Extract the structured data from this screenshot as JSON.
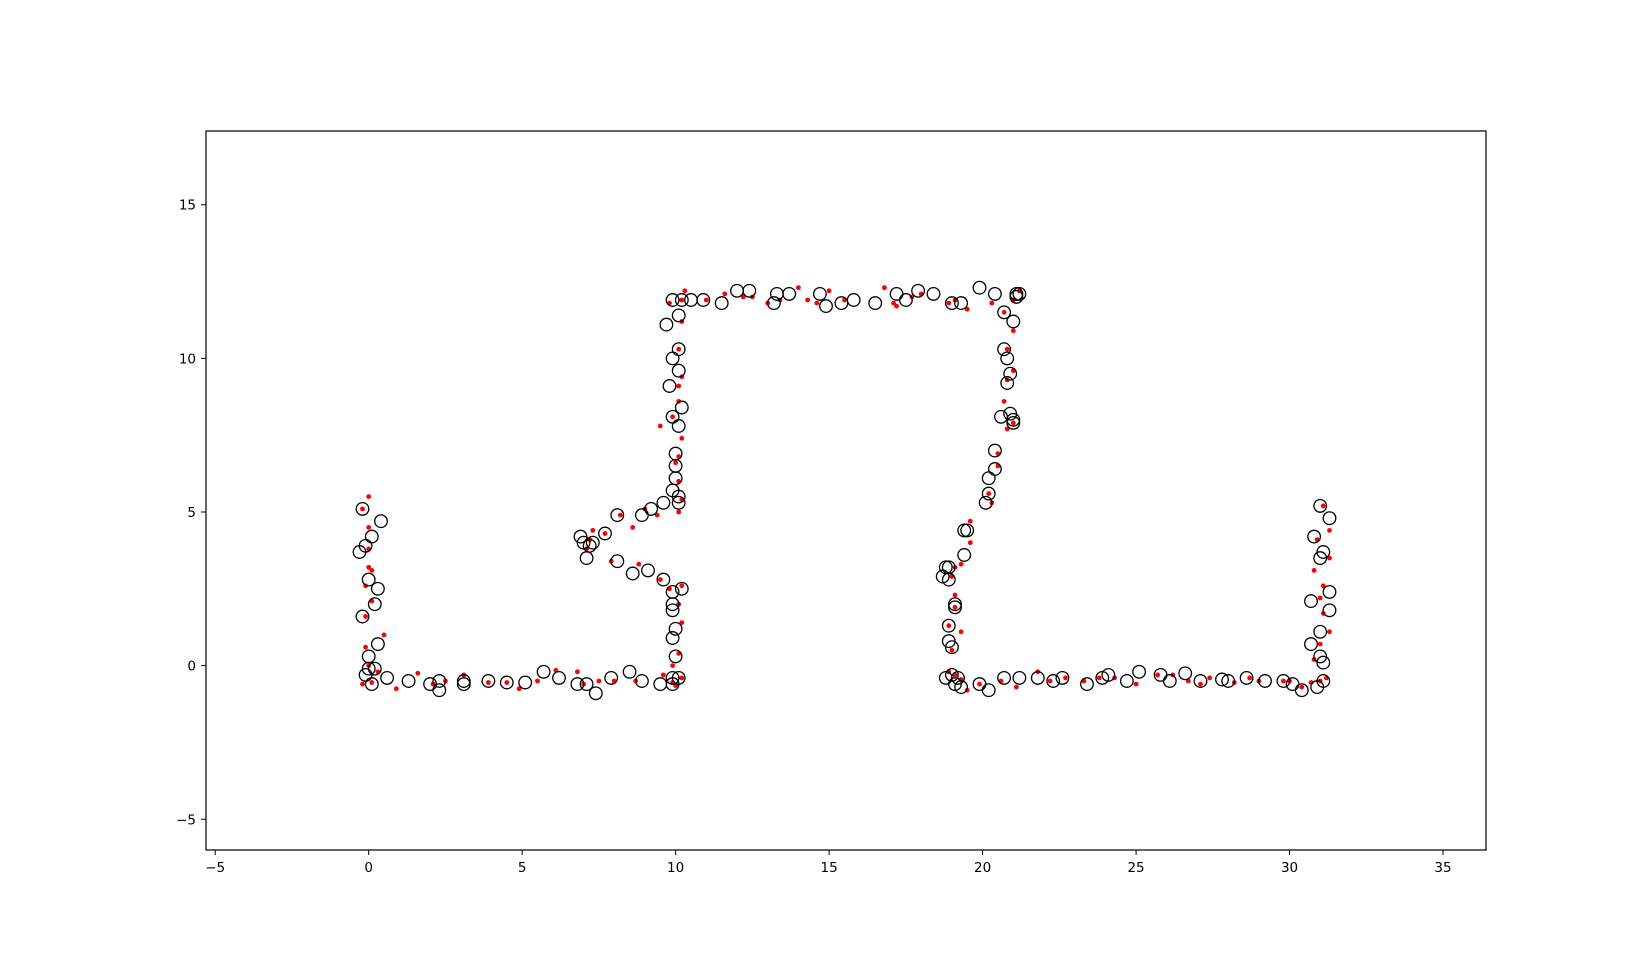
{
  "chart_data": {
    "type": "scatter",
    "title": "",
    "xlabel": "",
    "ylabel": "",
    "xlim": [
      -5.3,
      36.4
    ],
    "ylim": [
      -6.0,
      17.4
    ],
    "xticks": [
      -5,
      0,
      5,
      10,
      15,
      20,
      25,
      30,
      35
    ],
    "xtick_labels": [
      "−5",
      "0",
      "5",
      "10",
      "15",
      "20",
      "25",
      "30",
      "35"
    ],
    "yticks": [
      -5,
      0,
      5,
      10,
      15
    ],
    "ytick_labels": [
      "−5",
      "0",
      "5",
      "10",
      "15"
    ],
    "grid": false,
    "legend": "none",
    "series": [
      {
        "marker": "open-circle",
        "color": "#000000",
        "points": [
          [
            -0.2,
            5.1
          ],
          [
            0.4,
            4.7
          ],
          [
            0.1,
            4.2
          ],
          [
            -0.1,
            3.9
          ],
          [
            -0.3,
            3.7
          ],
          [
            0.0,
            2.8
          ],
          [
            0.3,
            2.5
          ],
          [
            0.2,
            2.0
          ],
          [
            -0.2,
            1.6
          ],
          [
            0.3,
            0.7
          ],
          [
            0.0,
            0.3
          ],
          [
            0.0,
            -0.1
          ],
          [
            0.2,
            -0.1
          ],
          [
            -0.1,
            -0.3
          ],
          [
            0.6,
            -0.4
          ],
          [
            0.1,
            -0.6
          ],
          [
            1.3,
            -0.5
          ],
          [
            2.0,
            -0.6
          ],
          [
            2.3,
            -0.5
          ],
          [
            2.3,
            -0.8
          ],
          [
            3.1,
            -0.5
          ],
          [
            3.1,
            -0.6
          ],
          [
            3.9,
            -0.5
          ],
          [
            4.5,
            -0.55
          ],
          [
            5.1,
            -0.55
          ],
          [
            5.7,
            -0.2
          ],
          [
            6.2,
            -0.4
          ],
          [
            6.8,
            -0.6
          ],
          [
            7.1,
            -0.6
          ],
          [
            7.4,
            -0.9
          ],
          [
            7.9,
            -0.4
          ],
          [
            8.5,
            -0.2
          ],
          [
            8.9,
            -0.5
          ],
          [
            9.5,
            -0.6
          ],
          [
            9.9,
            -0.6
          ],
          [
            10.1,
            -0.4
          ],
          [
            9.9,
            -0.4
          ],
          [
            10.0,
            0.3
          ],
          [
            9.9,
            0.9
          ],
          [
            10.0,
            1.2
          ],
          [
            9.9,
            1.8
          ],
          [
            9.9,
            2.0
          ],
          [
            10.2,
            2.5
          ],
          [
            9.9,
            2.4
          ],
          [
            9.6,
            2.8
          ],
          [
            9.1,
            3.1
          ],
          [
            8.6,
            3.0
          ],
          [
            8.1,
            3.4
          ],
          [
            7.3,
            4.0
          ],
          [
            7.7,
            4.3
          ],
          [
            7.1,
            3.5
          ],
          [
            6.9,
            4.2
          ],
          [
            7.0,
            4.0
          ],
          [
            7.2,
            3.9
          ],
          [
            8.1,
            4.9
          ],
          [
            8.9,
            4.9
          ],
          [
            9.2,
            5.1
          ],
          [
            9.6,
            5.3
          ],
          [
            10.1,
            5.3
          ],
          [
            10.1,
            5.5
          ],
          [
            9.9,
            5.7
          ],
          [
            10.0,
            6.1
          ],
          [
            10.0,
            6.5
          ],
          [
            10.0,
            6.9
          ],
          [
            10.1,
            7.8
          ],
          [
            9.9,
            8.1
          ],
          [
            10.2,
            8.4
          ],
          [
            10.1,
            9.6
          ],
          [
            9.8,
            9.1
          ],
          [
            9.9,
            10.0
          ],
          [
            10.1,
            10.3
          ],
          [
            9.7,
            11.1
          ],
          [
            10.1,
            11.4
          ],
          [
            9.9,
            11.9
          ],
          [
            10.2,
            11.9
          ],
          [
            10.5,
            11.9
          ],
          [
            10.9,
            11.9
          ],
          [
            11.5,
            11.8
          ],
          [
            12.0,
            12.2
          ],
          [
            12.4,
            12.2
          ],
          [
            13.2,
            11.8
          ],
          [
            13.3,
            12.1
          ],
          [
            13.7,
            12.1
          ],
          [
            14.7,
            12.1
          ],
          [
            14.9,
            11.7
          ],
          [
            15.4,
            11.8
          ],
          [
            15.8,
            11.9
          ],
          [
            16.5,
            11.8
          ],
          [
            17.2,
            12.1
          ],
          [
            17.5,
            11.9
          ],
          [
            17.9,
            12.2
          ],
          [
            18.4,
            12.1
          ],
          [
            19.0,
            11.8
          ],
          [
            19.3,
            11.8
          ],
          [
            19.9,
            12.3
          ],
          [
            20.4,
            12.1
          ],
          [
            21.1,
            12.1
          ],
          [
            21.1,
            12.0
          ],
          [
            21.2,
            12.1
          ],
          [
            20.7,
            11.5
          ],
          [
            21.0,
            11.2
          ],
          [
            20.7,
            10.3
          ],
          [
            20.8,
            10.0
          ],
          [
            20.9,
            9.5
          ],
          [
            20.8,
            9.2
          ],
          [
            20.6,
            8.1
          ],
          [
            20.9,
            8.2
          ],
          [
            21.0,
            8.0
          ],
          [
            21.0,
            7.9
          ],
          [
            20.4,
            7.0
          ],
          [
            20.4,
            6.4
          ],
          [
            20.2,
            6.1
          ],
          [
            20.2,
            5.6
          ],
          [
            20.1,
            5.3
          ],
          [
            19.4,
            4.4
          ],
          [
            19.5,
            4.4
          ],
          [
            19.4,
            3.6
          ],
          [
            18.8,
            3.2
          ],
          [
            18.9,
            3.2
          ],
          [
            18.7,
            2.9
          ],
          [
            18.9,
            2.8
          ],
          [
            19.1,
            2.0
          ],
          [
            19.1,
            1.9
          ],
          [
            18.9,
            1.3
          ],
          [
            18.9,
            0.8
          ],
          [
            19.0,
            0.6
          ],
          [
            18.8,
            -0.4
          ],
          [
            19.0,
            -0.3
          ],
          [
            19.1,
            -0.6
          ],
          [
            19.2,
            -0.4
          ],
          [
            19.3,
            -0.7
          ],
          [
            19.9,
            -0.6
          ],
          [
            20.2,
            -0.8
          ],
          [
            20.7,
            -0.4
          ],
          [
            21.2,
            -0.4
          ],
          [
            21.8,
            -0.4
          ],
          [
            22.3,
            -0.5
          ],
          [
            22.6,
            -0.4
          ],
          [
            23.4,
            -0.6
          ],
          [
            23.9,
            -0.4
          ],
          [
            24.1,
            -0.3
          ],
          [
            24.7,
            -0.5
          ],
          [
            25.1,
            -0.2
          ],
          [
            25.8,
            -0.3
          ],
          [
            26.1,
            -0.5
          ],
          [
            26.6,
            -0.25
          ],
          [
            27.1,
            -0.5
          ],
          [
            27.8,
            -0.45
          ],
          [
            28.0,
            -0.5
          ],
          [
            28.6,
            -0.4
          ],
          [
            29.2,
            -0.5
          ],
          [
            29.8,
            -0.5
          ],
          [
            30.1,
            -0.6
          ],
          [
            30.4,
            -0.8
          ],
          [
            30.9,
            -0.7
          ],
          [
            31.1,
            -0.5
          ],
          [
            31.1,
            0.1
          ],
          [
            31.0,
            0.3
          ],
          [
            30.7,
            0.7
          ],
          [
            31.0,
            1.1
          ],
          [
            30.7,
            2.1
          ],
          [
            31.3,
            1.8
          ],
          [
            31.3,
            2.4
          ],
          [
            31.0,
            3.5
          ],
          [
            31.1,
            3.7
          ],
          [
            30.8,
            4.2
          ],
          [
            31.3,
            4.8
          ],
          [
            31.0,
            5.2
          ]
        ]
      },
      {
        "marker": "dot",
        "color": "#ff0000",
        "points": [
          [
            -0.2,
            5.1
          ],
          [
            0.0,
            5.5
          ],
          [
            0.0,
            4.5
          ],
          [
            0.0,
            3.8
          ],
          [
            0.0,
            3.2
          ],
          [
            0.1,
            3.1
          ],
          [
            -0.1,
            2.6
          ],
          [
            0.1,
            2.1
          ],
          [
            -0.1,
            1.6
          ],
          [
            0.5,
            1.0
          ],
          [
            -0.1,
            0.6
          ],
          [
            0.0,
            0.0
          ],
          [
            0.3,
            -0.2
          ],
          [
            -0.2,
            -0.6
          ],
          [
            0.1,
            -0.55
          ],
          [
            0.9,
            -0.75
          ],
          [
            1.6,
            -0.25
          ],
          [
            2.1,
            -0.6
          ],
          [
            2.5,
            -0.5
          ],
          [
            3.1,
            -0.3
          ],
          [
            3.9,
            -0.55
          ],
          [
            4.5,
            -0.55
          ],
          [
            4.9,
            -0.75
          ],
          [
            5.5,
            -0.5
          ],
          [
            6.1,
            -0.15
          ],
          [
            6.8,
            -0.2
          ],
          [
            7.0,
            -0.6
          ],
          [
            7.5,
            -0.5
          ],
          [
            8.0,
            -0.5
          ],
          [
            8.7,
            -0.5
          ],
          [
            9.6,
            -0.3
          ],
          [
            9.9,
            -0.55
          ],
          [
            10.0,
            -0.65
          ],
          [
            10.2,
            -0.4
          ],
          [
            9.9,
            0.0
          ],
          [
            10.1,
            0.4
          ],
          [
            10.2,
            1.4
          ],
          [
            10.1,
            2.0
          ],
          [
            9.8,
            2.5
          ],
          [
            10.2,
            2.6
          ],
          [
            9.5,
            2.8
          ],
          [
            8.8,
            3.3
          ],
          [
            7.9,
            3.4
          ],
          [
            7.7,
            4.3
          ],
          [
            7.3,
            4.4
          ],
          [
            7.2,
            4.1
          ],
          [
            7.1,
            3.8
          ],
          [
            8.2,
            4.9
          ],
          [
            8.6,
            4.5
          ],
          [
            9.0,
            5.1
          ],
          [
            9.4,
            4.9
          ],
          [
            10.1,
            5.0
          ],
          [
            10.2,
            5.4
          ],
          [
            10.1,
            6.0
          ],
          [
            10.0,
            6.6
          ],
          [
            10.1,
            6.8
          ],
          [
            10.2,
            7.4
          ],
          [
            9.5,
            7.8
          ],
          [
            9.9,
            8.1
          ],
          [
            10.1,
            8.6
          ],
          [
            10.1,
            9.1
          ],
          [
            10.2,
            9.4
          ],
          [
            10.1,
            10.3
          ],
          [
            10.2,
            11.2
          ],
          [
            9.8,
            11.8
          ],
          [
            10.2,
            11.9
          ],
          [
            10.3,
            12.2
          ],
          [
            11.0,
            11.9
          ],
          [
            11.6,
            12.1
          ],
          [
            12.2,
            12.0
          ],
          [
            12.5,
            12.0
          ],
          [
            13.0,
            11.8
          ],
          [
            13.4,
            11.9
          ],
          [
            14.0,
            12.3
          ],
          [
            14.3,
            11.9
          ],
          [
            14.6,
            11.8
          ],
          [
            15.0,
            12.2
          ],
          [
            15.5,
            11.9
          ],
          [
            16.8,
            12.3
          ],
          [
            17.1,
            11.8
          ],
          [
            17.2,
            11.7
          ],
          [
            17.7,
            12.0
          ],
          [
            18.0,
            12.1
          ],
          [
            18.9,
            11.8
          ],
          [
            19.1,
            11.9
          ],
          [
            19.5,
            11.6
          ],
          [
            20.3,
            11.8
          ],
          [
            21.0,
            11.9
          ],
          [
            21.2,
            12.2
          ],
          [
            20.7,
            11.5
          ],
          [
            21.0,
            10.9
          ],
          [
            20.8,
            10.3
          ],
          [
            21.0,
            9.6
          ],
          [
            20.8,
            9.3
          ],
          [
            20.7,
            8.6
          ],
          [
            21.0,
            7.9
          ],
          [
            20.8,
            7.7
          ],
          [
            20.5,
            6.5
          ],
          [
            20.5,
            6.9
          ],
          [
            20.2,
            5.6
          ],
          [
            20.3,
            5.3
          ],
          [
            19.6,
            4.7
          ],
          [
            19.6,
            4.0
          ],
          [
            19.3,
            3.3
          ],
          [
            19.1,
            3.2
          ],
          [
            19.0,
            2.9
          ],
          [
            19.1,
            2.3
          ],
          [
            19.1,
            1.9
          ],
          [
            18.9,
            1.3
          ],
          [
            19.3,
            1.1
          ],
          [
            19.0,
            0.5
          ],
          [
            18.9,
            -0.2
          ],
          [
            19.1,
            -0.3
          ],
          [
            19.3,
            -0.45
          ],
          [
            19.5,
            -0.8
          ],
          [
            19.9,
            -0.6
          ],
          [
            20.6,
            -0.5
          ],
          [
            21.1,
            -0.7
          ],
          [
            21.8,
            -0.2
          ],
          [
            22.2,
            -0.5
          ],
          [
            22.7,
            -0.4
          ],
          [
            23.3,
            -0.5
          ],
          [
            23.8,
            -0.4
          ],
          [
            24.3,
            -0.4
          ],
          [
            25.0,
            -0.6
          ],
          [
            25.7,
            -0.3
          ],
          [
            26.2,
            -0.3
          ],
          [
            26.7,
            -0.5
          ],
          [
            27.1,
            -0.6
          ],
          [
            27.4,
            -0.4
          ],
          [
            28.2,
            -0.55
          ],
          [
            28.7,
            -0.4
          ],
          [
            29.0,
            -0.5
          ],
          [
            29.8,
            -0.5
          ],
          [
            30.0,
            -0.5
          ],
          [
            30.4,
            -0.7
          ],
          [
            30.7,
            -0.55
          ],
          [
            31.0,
            -0.5
          ],
          [
            31.2,
            -0.4
          ],
          [
            30.8,
            0.2
          ],
          [
            31.0,
            0.7
          ],
          [
            31.3,
            1.1
          ],
          [
            31.1,
            1.7
          ],
          [
            31.0,
            2.2
          ],
          [
            31.1,
            2.6
          ],
          [
            30.8,
            3.1
          ],
          [
            31.3,
            3.5
          ],
          [
            30.9,
            4.1
          ],
          [
            31.3,
            4.4
          ],
          [
            31.1,
            5.2
          ]
        ]
      }
    ]
  }
}
